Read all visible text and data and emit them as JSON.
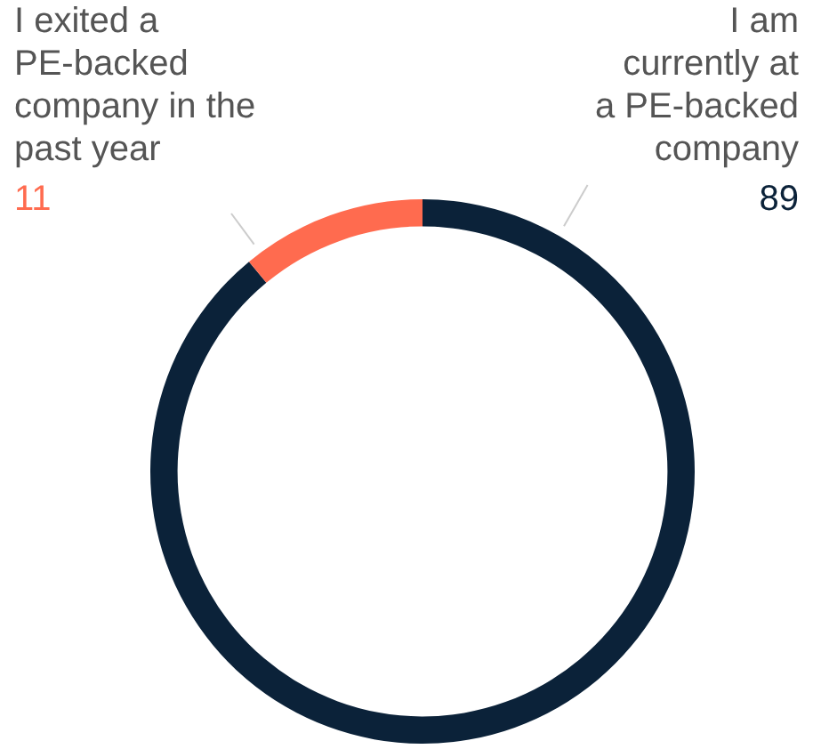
{
  "chart_data": {
    "type": "donut",
    "categories": [
      "I am currently at a PE-backed company",
      "I exited a PE-backed company in the past year"
    ],
    "values": [
      89,
      11
    ],
    "colors": [
      "#0b2239",
      "#ff6b4f"
    ],
    "data_labels": true,
    "legend": false
  }
}
